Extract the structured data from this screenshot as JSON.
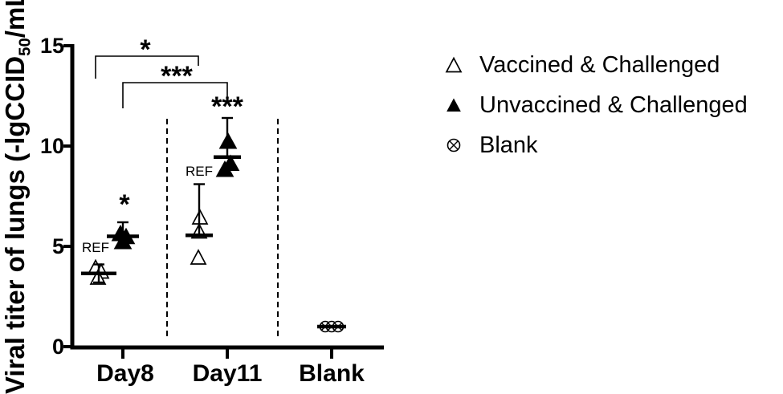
{
  "figure": {
    "background": "#ffffff",
    "ink": "#000000"
  },
  "labels": {
    "y_title_main": "Viral titer of lungs (-lgCCID",
    "y_title_sub": "50",
    "y_title_tail": "/mL)",
    "ref": "REF"
  },
  "chart_data": {
    "type": "scatter",
    "title": "",
    "xlabel": "",
    "ylabel": "Viral titer of lungs (-lgCCID50/mL)",
    "ylim": [
      0,
      15
    ],
    "yticks": [
      0,
      5,
      10,
      15
    ],
    "ytick_labels_top_to_bottom": [
      "15",
      "10",
      "5",
      "0"
    ],
    "categories": [
      "Day8",
      "Day11",
      "Blank"
    ],
    "grid": false,
    "legend_position": "right",
    "series": [
      {
        "name": "Vaccined & Challenged",
        "marker": "open-triangle",
        "groups": [
          {
            "category": "Day8",
            "key": "d8v",
            "points": [
              3.9,
              3.7,
              3.4
            ],
            "mean": 3.65,
            "sd_top": 4.1,
            "sd_bottom": 3.2,
            "annotation": "REF"
          },
          {
            "category": "Day11",
            "key": "d11v",
            "points": [
              6.4,
              5.7,
              4.4
            ],
            "mean": 5.55,
            "sd_top": 8.1,
            "annotation": "REF"
          }
        ]
      },
      {
        "name": "Unvaccined & Challenged",
        "marker": "filled-triangle",
        "groups": [
          {
            "category": "Day8",
            "key": "d8u",
            "points": [
              5.6,
              5.45,
              5.2
            ],
            "mean": 5.5,
            "sd_top": 6.2,
            "sig": "*"
          },
          {
            "category": "Day11",
            "key": "d11u",
            "points": [
              10.2,
              9.1,
              8.8
            ],
            "mean": 9.45,
            "sd_top": 11.4,
            "sig": "***"
          }
        ]
      },
      {
        "name": "Blank",
        "marker": "circle-x",
        "groups": [
          {
            "category": "Blank",
            "key": "blank",
            "points": [
              1.0,
              1.0,
              1.0
            ],
            "mean": 1.0
          }
        ]
      }
    ],
    "comparisons": [
      {
        "label": "*",
        "between": [
          "Day8 Vaccined & Challenged",
          "Day11 Vaccined & Challenged"
        ]
      },
      {
        "label": "***",
        "between": [
          "Day8 Unvaccined & Challenged",
          "Day11 Unvaccined & Challenged"
        ]
      }
    ]
  }
}
